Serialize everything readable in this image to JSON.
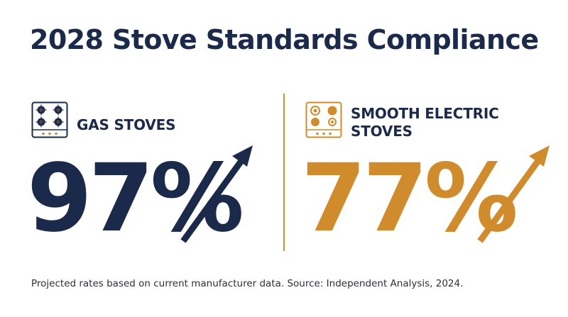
{
  "title": "2028 Stove Standards Compliance",
  "panels": {
    "gas": {
      "label": "GAS STOVES",
      "value": "97%",
      "icon": "gas-stove-icon",
      "color": "#1b2a4a"
    },
    "electric": {
      "label": "SMOOTH ELECTRIC STOVES",
      "value": "77%",
      "icon": "electric-stove-icon",
      "color": "#d08b2c"
    }
  },
  "trend_icon": "arrow-up-right-icon",
  "divider_color": "#c9933f",
  "footnote": "Projected rates based on current manufacturer data. Source: Independent Analysis, 2024."
}
